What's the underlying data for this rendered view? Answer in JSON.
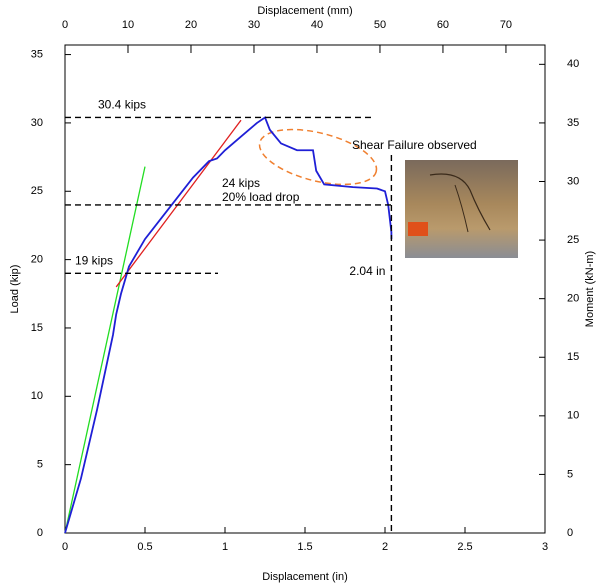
{
  "chart_data": {
    "type": "line",
    "x_label": "Displacement (in)",
    "y_label": "Load (kip)",
    "x2_label": "Displacement (mm)",
    "y2_label": "Moment (kN-m)",
    "xlim": [
      0,
      3
    ],
    "xticks": [
      0,
      0.5,
      1,
      1.5,
      2,
      2.5,
      3
    ],
    "ylim": [
      0,
      35.7
    ],
    "yticks": [
      0,
      5,
      10,
      15,
      20,
      25,
      30,
      35
    ],
    "x2lim": [
      0,
      76.2
    ],
    "x2ticks": [
      0,
      10,
      20,
      30,
      40,
      50,
      60,
      70
    ],
    "y2lim": [
      0,
      41.65
    ],
    "y2ticks": [
      0,
      5,
      10,
      15,
      20,
      25,
      30,
      35,
      40
    ],
    "series": [
      {
        "color": "#1f1fd6",
        "x": [
          0,
          0.1,
          0.2,
          0.3,
          0.32,
          0.35,
          0.4,
          0.5,
          0.6,
          0.7,
          0.8,
          0.9,
          0.95,
          1.0,
          1.1,
          1.2,
          1.25,
          1.28,
          1.35,
          1.45,
          1.55,
          1.57,
          1.62,
          1.8,
          1.95,
          2.0,
          2.02,
          2.04,
          2.04
        ],
        "values": [
          0,
          4,
          9,
          14.5,
          16,
          17.5,
          19.5,
          21.5,
          23,
          24.5,
          26,
          27.2,
          27.4,
          28,
          29,
          30,
          30.4,
          29.5,
          28.5,
          28,
          28,
          26.5,
          25.5,
          25.3,
          25.2,
          25,
          24,
          22,
          21.5
        ]
      }
    ],
    "fit_lines": [
      {
        "color": "#22dd22",
        "x": [
          0,
          0.5
        ],
        "values": [
          0,
          26.8
        ]
      },
      {
        "color": "#e02020",
        "x": [
          0.32,
          1.1
        ],
        "values": [
          18,
          30.2
        ]
      }
    ],
    "hlines": [
      {
        "label": "30.4 kips",
        "y": 30.4
      },
      {
        "label": "24 kips",
        "y": 24,
        "label2": "20% load drop"
      },
      {
        "label": "19 kips",
        "y": 19
      }
    ],
    "vline": {
      "label": "2.04 in",
      "x": 2.04
    },
    "annotation": "Shear Failure observed"
  }
}
